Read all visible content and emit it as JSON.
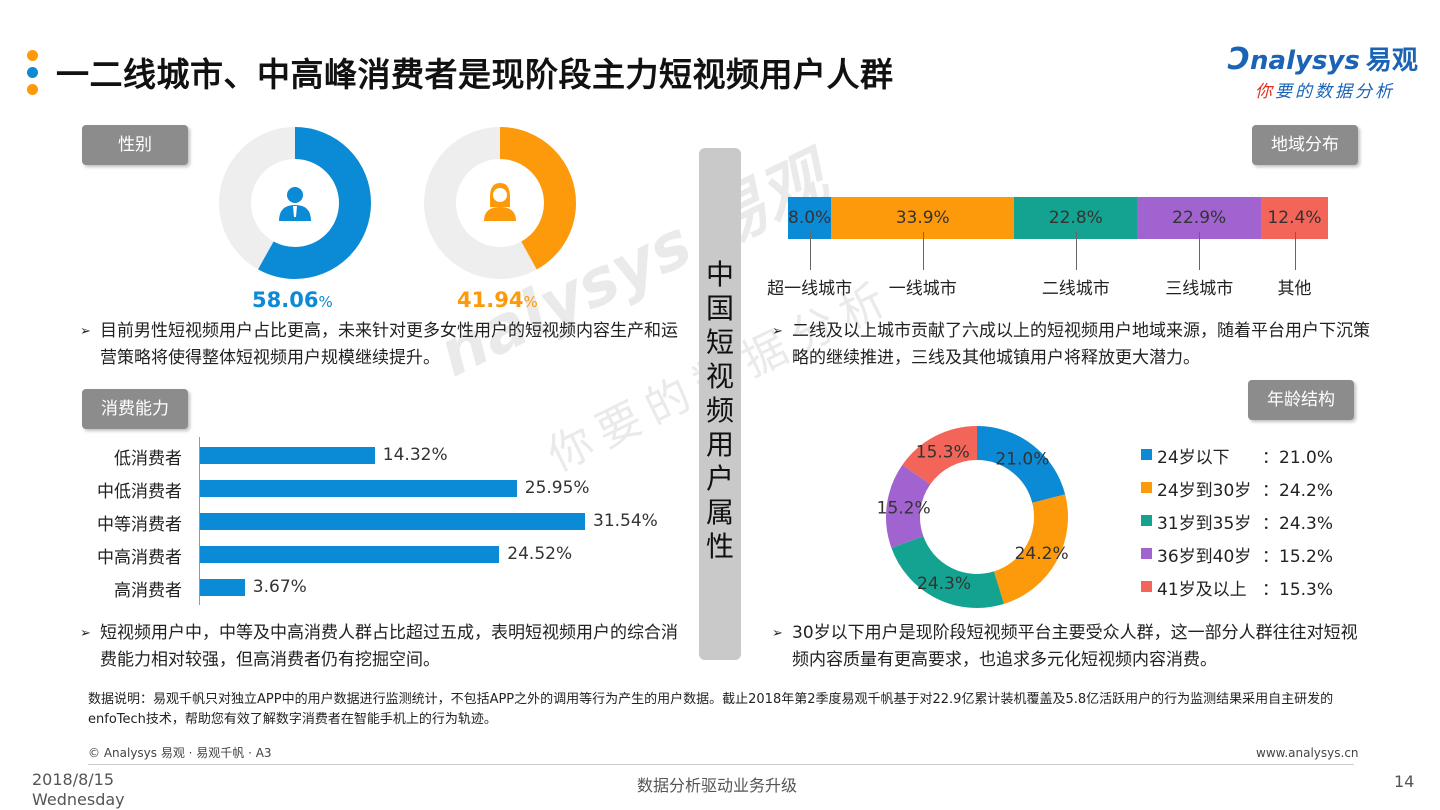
{
  "title": "一二线城市、中高峰消费者是现阶段主力短视频用户人群",
  "logo": {
    "brand": "nalysys",
    "brand_cn": "易观",
    "slogan_red": "你",
    "slogan": "要的数据分析"
  },
  "center_label": "中国短视频用户属性",
  "gender": {
    "tag": "性别",
    "male_pct": "58.06",
    "female_pct": "41.94",
    "pct_unit": "%",
    "male_value": 58.06,
    "female_value": 41.94,
    "colors": {
      "male": "#0b8ad6",
      "female": "#fd9a0b",
      "track": "#eeeeee"
    },
    "bullet": "目前男性短视频用户占比更高，未来针对更多女性用户的短视频内容生产和运营策略将使得整体短视频用户规模继续提升。"
  },
  "consumption": {
    "tag": "消费能力",
    "rows": [
      {
        "label": "低消费者",
        "value": 14.32,
        "text": "14.32%"
      },
      {
        "label": "中低消费者",
        "value": 25.95,
        "text": "25.95%"
      },
      {
        "label": "中等消费者",
        "value": 31.54,
        "text": "31.54%"
      },
      {
        "label": "中高消费者",
        "value": 24.52,
        "text": "24.52%"
      },
      {
        "label": "高消费者",
        "value": 3.67,
        "text": "3.67%"
      }
    ],
    "bullet": "短视频用户中，中等及中高消费人群占比超过五成，表明短视频用户的综合消费能力相对较强，但高消费者仍有挖掘空间。"
  },
  "region": {
    "tag": "地域分布",
    "segments": [
      {
        "label": "超一线城市",
        "value": 8.0,
        "text": "8.0%",
        "color": "#0b8ad6"
      },
      {
        "label": "一线城市",
        "value": 33.9,
        "text": "33.9%",
        "color": "#fd9a0b"
      },
      {
        "label": "二线城市",
        "value": 22.8,
        "text": "22.8%",
        "color": "#14a391"
      },
      {
        "label": "三线城市",
        "value": 22.9,
        "text": "22.9%",
        "color": "#a063cf"
      },
      {
        "label": "其他",
        "value": 12.4,
        "text": "12.4%",
        "color": "#f26558"
      }
    ],
    "bullet": "二线及以上城市贡献了六成以上的短视频用户地域来源，随着平台用户下沉策略的继续推进，三线及其他城镇用户将释放更大潜力。"
  },
  "age": {
    "tag": "年龄结构",
    "slices": [
      {
        "label": "24岁以下",
        "value": 21.0,
        "text": "21.0%",
        "color": "#0b8ad6"
      },
      {
        "label": "24岁到30岁",
        "value": 24.2,
        "text": "24.2%",
        "color": "#fd9a0b"
      },
      {
        "label": "31岁到35岁",
        "value": 24.3,
        "text": "24.3%",
        "color": "#14a391"
      },
      {
        "label": "36岁到40岁",
        "value": 15.2,
        "text": "15.2%",
        "color": "#a063cf"
      },
      {
        "label": "41岁及以上",
        "value": 15.3,
        "text": "15.3%",
        "color": "#f26558"
      }
    ],
    "legend_sep": "：",
    "bullet": "30岁以下用户是现阶段短视频平台主要受众人群，这一部分人群往往对短视频内容质量有更高要求，也追求多元化短视频内容消费。"
  },
  "note": "数据说明：易观千帆只对独立APP中的用户数据进行监测统计，不包括APP之外的调用等行为产生的用户数据。截止2018年第2季度易观千帆基于对22.9亿累计装机覆盖及5.8亿活跃用户的行为监测结果采用自主研发的enfoTech技术，帮助您有效了解数字消费者在智能手机上的行为轨迹。",
  "footer": {
    "copyright": "© Analysys 易观 · 易观千帆 · A3",
    "website": "www.analysys.cn",
    "date": "2018/8/15",
    "weekday": "Wednesday",
    "slogan": "数据分析驱动业务升级",
    "page": "14"
  },
  "watermark": {
    "brand": "nalysys 易观",
    "slogan": "你要的数据分析"
  }
}
